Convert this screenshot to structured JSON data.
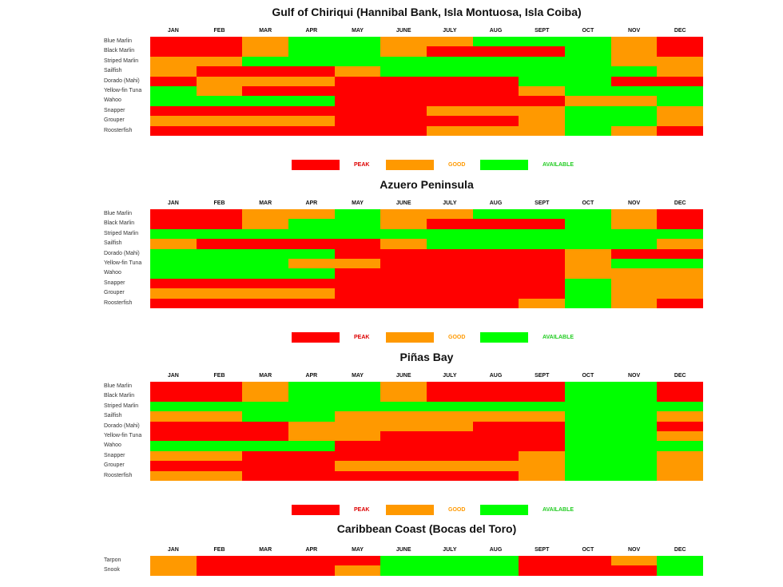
{
  "chart_data": {
    "type": "heatmap",
    "months": [
      "JAN",
      "FEB",
      "MAR",
      "APR",
      "MAY",
      "JUNE",
      "JULY",
      "AUG",
      "SEPT",
      "OCT",
      "NOV",
      "DEC"
    ],
    "legend": [
      {
        "key": "R",
        "label": "PEAK",
        "color": "#ff0000"
      },
      {
        "key": "O",
        "label": "GOOD",
        "color": "#ff9900"
      },
      {
        "key": "G",
        "label": "AVAILABLE",
        "color": "#00ff00"
      }
    ],
    "sections": [
      {
        "title": "Gulf of Chiriqui (Hannibal Bank, Isla Montuosa, Isla Coiba)",
        "rows": [
          {
            "species": "Blue Marlin",
            "values": "RROGGOOGGGOR"
          },
          {
            "species": "Black Marlin",
            "values": "RROGGORRRGOR"
          },
          {
            "species": "Striped Marlin",
            "values": "OOGGGGGGGGOO"
          },
          {
            "species": "Sailfish",
            "values": "ORRROGGGGGGO"
          },
          {
            "species": "Dorado (Mahi)",
            "values": "ROOORRRRGGRR"
          },
          {
            "species": "Yellow-fin Tuna",
            "values": "GORRRRRROGGG"
          },
          {
            "species": "Wahoo",
            "values": "GGGGRRRRROOG"
          },
          {
            "species": "Snapper",
            "values": "RRRRRROOOGGO"
          },
          {
            "species": "Grouper",
            "values": "OOOORRRROGGO"
          },
          {
            "species": "Roosterfish",
            "values": "RRRRRROOOGOR"
          }
        ]
      },
      {
        "title": "Azuero Peninsula",
        "rows": [
          {
            "species": "Blue Marlin",
            "values": "RROOGOOGGGOR"
          },
          {
            "species": "Black Marlin",
            "values": "RROGGORRRGOR"
          },
          {
            "species": "Striped Marlin",
            "values": "GGGGGGGGGGGG"
          },
          {
            "species": "Sailfish",
            "values": "ORRRROGGGGGO"
          },
          {
            "species": "Dorado (Mahi)",
            "values": "GGGGRRRRRORR"
          },
          {
            "species": "Yellow-fin Tuna",
            "values": "GGGOORRRROGG"
          },
          {
            "species": "Wahoo",
            "values": "GGGGRRRRROOO"
          },
          {
            "species": "Snapper",
            "values": "RRRRRRRRRGOO"
          },
          {
            "species": "Grouper",
            "values": "OOOORRRRRGOO"
          },
          {
            "species": "Roosterfish",
            "values": "RRRRRRRROGOR"
          }
        ]
      },
      {
        "title": "Piñas Bay",
        "rows": [
          {
            "species": "Blue Marlin",
            "values": "RROGGORRRGGR"
          },
          {
            "species": "Black Marlin",
            "values": "RROGGORRRGGR"
          },
          {
            "species": "Striped Marlin",
            "values": "GGGGGGGGGGGG"
          },
          {
            "species": "Sailfish",
            "values": "OOGGOOOOOGGO"
          },
          {
            "species": "Dorado (Mahi)",
            "values": "RRROOOORRGGR"
          },
          {
            "species": "Yellow-fin Tuna",
            "values": "RRROORRRRGGO"
          },
          {
            "species": "Wahoo",
            "values": "GGGGRRRRRGGG"
          },
          {
            "species": "Snapper",
            "values": "OORRRRRROGGO"
          },
          {
            "species": "Grouper",
            "values": "RRRROOOOOGGO"
          },
          {
            "species": "Roosterfish",
            "values": "OORRRRRROGGO"
          }
        ]
      },
      {
        "title": "Caribbean Coast (Bocas del Toro)",
        "rows": [
          {
            "species": "Tarpon",
            "values": "ORRRRGGGRROG"
          },
          {
            "species": "Snook",
            "values": "ORRROGGGRRRG"
          }
        ]
      }
    ]
  }
}
